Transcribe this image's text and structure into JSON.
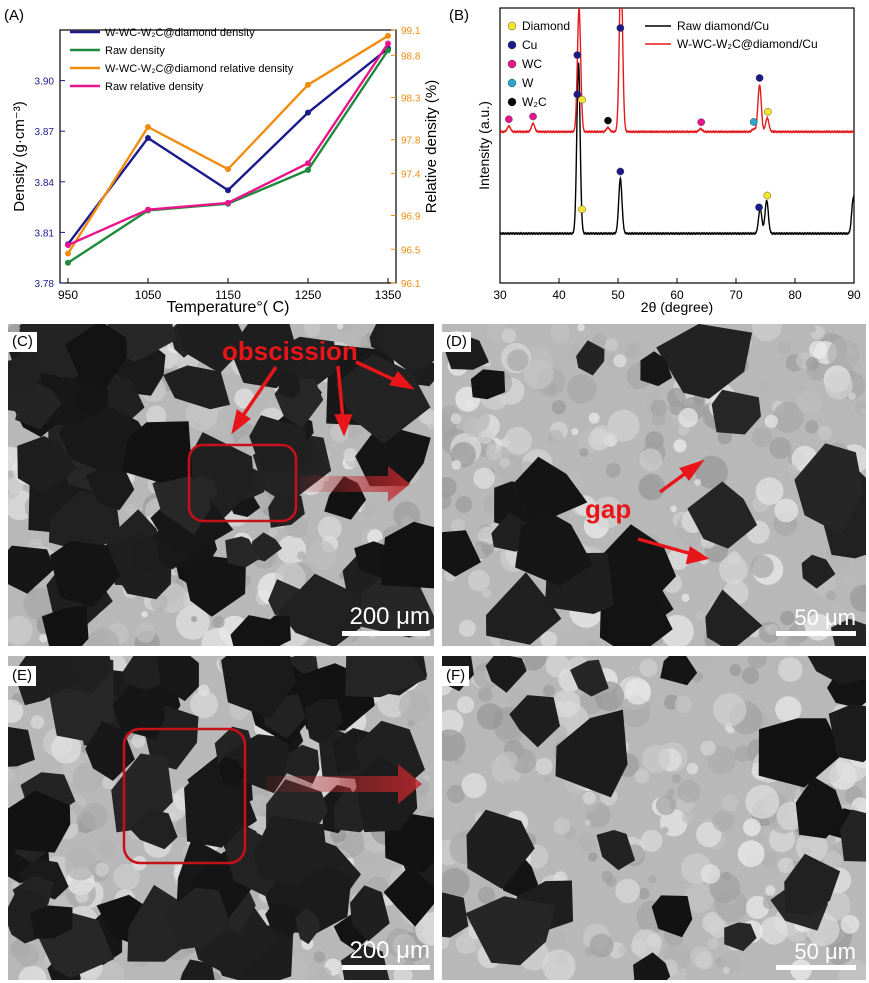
{
  "panels": {
    "a": "(A)",
    "b": "(B)",
    "c": "(C)",
    "d": "(D)",
    "e": "(E)",
    "f": "(F)"
  },
  "micrographs": {
    "c_scale": "200 μm",
    "d_scale": "50 μm",
    "e_scale": "200 μm",
    "f_scale": "50 μm",
    "c_annotation": "obscission",
    "d_annotation": "gap",
    "annotation_color": "#e8161a",
    "box_color": "#c8101a"
  },
  "chart_data": [
    {
      "type": "line",
      "panel": "(A)",
      "xlabel": "Temperature°( C)",
      "ylabel_left": "Density (g·cm⁻³)",
      "ylabel_right": "Relative density (%)",
      "x": [
        950,
        1050,
        1150,
        1250,
        1350
      ],
      "x_ticks": [
        950,
        1050,
        1150,
        1250,
        1350
      ],
      "xlim": [
        940,
        1360
      ],
      "ylim_left": [
        3.78,
        3.93
      ],
      "y_ticks_left": [
        "3.78",
        "3.81",
        "3.84",
        "3.87",
        "3.90"
      ],
      "ylim_right": [
        96.1,
        99.1
      ],
      "y_ticks_right": [
        "96.1",
        "96.5",
        "96.9",
        "97.4",
        "97.8",
        "98.3",
        "98.8",
        "99.1"
      ],
      "left_axis_color": "#1a1a8c",
      "right_axis_color": "#f08c10",
      "series": [
        {
          "name": "W-WC-W₂C@diamond density",
          "axis": "left",
          "color": "#1a1a8c",
          "values": [
            3.803,
            3.866,
            3.835,
            3.881,
            3.919
          ]
        },
        {
          "name": "Raw density",
          "axis": "left",
          "color": "#1e8c3c",
          "values": [
            3.792,
            3.823,
            3.827,
            3.847,
            3.918
          ]
        },
        {
          "name": "W-WC-W₂C@diamond relative density",
          "axis": "right",
          "color": "#f08c10",
          "values": [
            96.45,
            97.95,
            97.45,
            98.45,
            99.03
          ]
        },
        {
          "name": "Raw relative density",
          "axis": "right",
          "color": "#e8168c",
          "values": [
            96.55,
            96.97,
            97.05,
            97.52,
            98.94
          ]
        }
      ]
    },
    {
      "type": "line",
      "panel": "(B)",
      "xlabel": "2θ (degree)",
      "ylabel": "Intensity (a.u.)",
      "xlim": [
        30,
        90
      ],
      "x_ticks": [
        30,
        40,
        50,
        60,
        70,
        80,
        90
      ],
      "series": [
        {
          "name": "Raw diamond/Cu",
          "color": "#000000",
          "baseline": 0.82,
          "peaks": [
            [
              43.3,
              0.62
            ],
            [
              50.4,
              0.2
            ],
            [
              74.1,
              0.09
            ],
            [
              75.2,
              0.12
            ],
            [
              89.9,
              0.13
            ]
          ]
        },
        {
          "name": "W-WC-W₂C@diamond/Cu",
          "color": "#e31a1c",
          "baseline": 0.45,
          "peaks": [
            [
              31.5,
              0.02
            ],
            [
              35.6,
              0.03
            ],
            [
              43.4,
              0.45
            ],
            [
              48.3,
              0.015
            ],
            [
              50.5,
              0.6
            ],
            [
              64.0,
              0.01
            ],
            [
              73.0,
              0.01
            ],
            [
              74.0,
              0.17
            ],
            [
              75.3,
              0.05
            ]
          ]
        }
      ],
      "markers_legend": [
        {
          "name": "Diamond",
          "color": "#f2e52a"
        },
        {
          "name": "Cu",
          "color": "#1a1a8c"
        },
        {
          "name": "WC",
          "color": "#e8168c"
        },
        {
          "name": "W",
          "color": "#2aa6cc"
        },
        {
          "name": "W₂C",
          "color": "#000000"
        }
      ],
      "markers": [
        {
          "series": 1,
          "phase": "Cu",
          "x": 43.1
        },
        {
          "series": 1,
          "phase": "Diamond",
          "x": 43.9
        },
        {
          "series": 1,
          "phase": "Cu",
          "x": 50.4
        },
        {
          "series": 1,
          "phase": "WC",
          "x": 31.5
        },
        {
          "series": 1,
          "phase": "WC",
          "x": 35.6
        },
        {
          "series": 1,
          "phase": "W₂C",
          "x": 48.3
        },
        {
          "series": 1,
          "phase": "WC",
          "x": 64.1
        },
        {
          "series": 1,
          "phase": "W",
          "x": 73.0
        },
        {
          "series": 1,
          "phase": "Cu",
          "x": 74.0
        },
        {
          "series": 1,
          "phase": "Diamond",
          "x": 75.4
        },
        {
          "series": 0,
          "phase": "Cu",
          "x": 43.1
        },
        {
          "series": 0,
          "phase": "Diamond",
          "x": 43.9
        },
        {
          "series": 0,
          "phase": "Cu",
          "x": 50.4
        },
        {
          "series": 0,
          "phase": "Cu",
          "x": 73.9
        },
        {
          "series": 0,
          "phase": "Diamond",
          "x": 75.3
        }
      ]
    }
  ]
}
